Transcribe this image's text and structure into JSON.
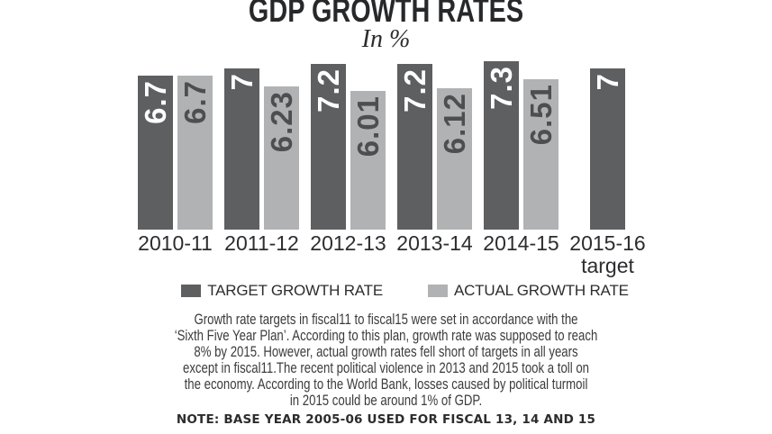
{
  "title": "GDP GROWTH RATES",
  "subtitle": "In %",
  "chart_data": {
    "type": "bar",
    "title": "GDP GROWTH RATES",
    "unit": "%",
    "categories": [
      [
        "2010-11"
      ],
      [
        "2011-12"
      ],
      [
        "2012-13"
      ],
      [
        "2013-14"
      ],
      [
        "2014-15"
      ],
      [
        "2015-16",
        "target"
      ]
    ],
    "series": [
      {
        "name": "TARGET GROWTH RATE",
        "values": [
          6.7,
          7,
          7.2,
          7.2,
          7.3,
          7
        ],
        "color": "#5e5f61",
        "value_label_color": "#ffffff"
      },
      {
        "name": "ACTUAL GROWTH RATE",
        "values": [
          6.7,
          6.23,
          6.01,
          6.12,
          6.51,
          null
        ],
        "color": "#b1b2b4",
        "value_label_color": "#4d4e50"
      }
    ],
    "ylim": [
      0,
      7.3
    ],
    "grid": false,
    "legend_position": "bottom",
    "value_label_style": "rotated-inside-top"
  },
  "paragraph": {
    "lines": [
      "Growth rate targets in fiscal11 to fiscal15 were set in accordance with the",
      "‘Sixth Five Year Plan’. According to this plan, growth rate was supposed to reach",
      "8% by 2015. However, actual growth rates fell short of targets in all years",
      "except in fiscal11.The recent political violence in 2013 and 2015 took a toll on",
      "the economy. According to the World Bank, losses caused by political turmoil",
      "in 2015 could be around 1% of GDP."
    ]
  },
  "note": "NOTE: BASE YEAR 2005-06 USED FOR FISCAL 13, 14 AND 15"
}
